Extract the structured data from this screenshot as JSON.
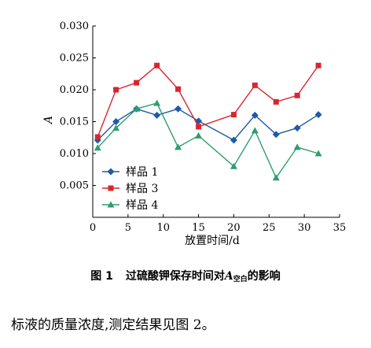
{
  "chart_data": {
    "type": "line",
    "xlabel": "放置时间/d",
    "ylabel": "A",
    "xlim": [
      0,
      35
    ],
    "ylim": [
      0,
      0.03
    ],
    "xticks": [
      "0",
      "5",
      "10",
      "15",
      "20",
      "25",
      "30",
      "35"
    ],
    "yticks": [
      "0.005",
      "0.010",
      "0.015",
      "0.020",
      "0.025",
      "0.030"
    ],
    "grid": false,
    "legend_position": "lower-left",
    "series": [
      {
        "name": "样品 1",
        "color": "#1f5aa6",
        "marker": "diamond",
        "x": [
          0.7,
          3.3,
          6.2,
          9.1,
          12.1,
          15,
          20,
          23,
          26,
          29,
          32
        ],
        "y": [
          0.0121,
          0.015,
          0.017,
          0.016,
          0.017,
          0.0151,
          0.0121,
          0.016,
          0.013,
          0.014,
          0.0161
        ]
      },
      {
        "name": "样品 3",
        "color": "#d9262c",
        "marker": "square",
        "x": [
          0.7,
          3.3,
          6.2,
          9.1,
          12.1,
          15,
          20,
          23,
          26,
          29,
          32
        ],
        "y": [
          0.0126,
          0.02,
          0.0211,
          0.0238,
          0.0201,
          0.0142,
          0.0161,
          0.0207,
          0.0181,
          0.0191,
          0.0238
        ]
      },
      {
        "name": "样品 4",
        "color": "#2e9e6e",
        "marker": "triangle",
        "x": [
          0.7,
          3.3,
          6.2,
          9.1,
          12.1,
          15,
          20,
          23,
          26,
          29,
          32
        ],
        "y": [
          0.0109,
          0.014,
          0.017,
          0.0179,
          0.011,
          0.0128,
          0.008,
          0.0136,
          0.0062,
          0.011,
          0.01
        ]
      }
    ]
  },
  "caption": {
    "figure_number": "图 1",
    "title_prefix": "过硫酸钾保存时间对",
    "title_var": "A",
    "title_sub": "空白",
    "title_suffix": "的影响"
  },
  "body_text": "标液的质量浓度,测定结果见图 2。"
}
